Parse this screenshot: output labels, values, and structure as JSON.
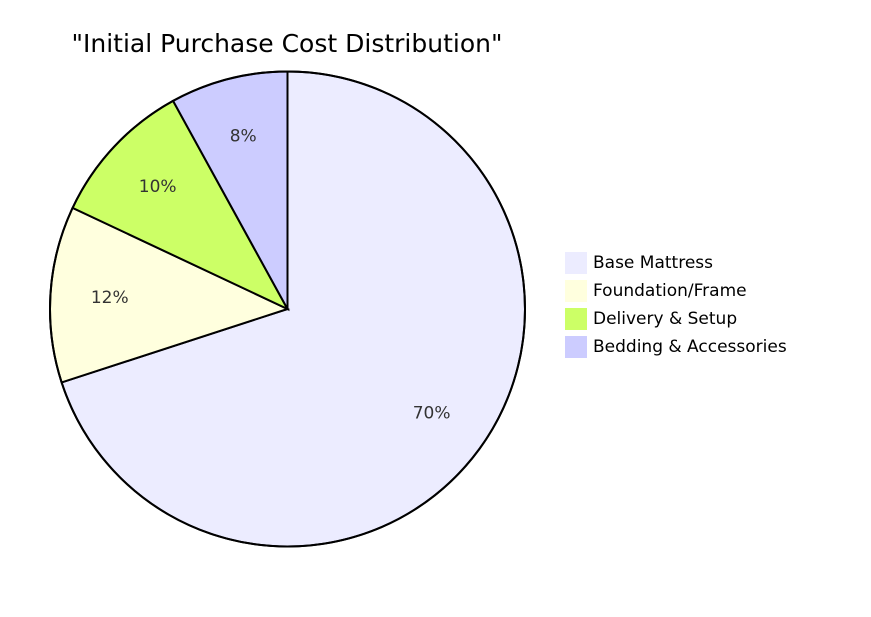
{
  "chart_data": {
    "type": "pie",
    "title": "\"Initial Purchase Cost Distribution\"",
    "slices": [
      {
        "label": "Base Mattress",
        "value": 70,
        "display": "70%",
        "color": "#ececff"
      },
      {
        "label": "Foundation/Frame",
        "value": 12,
        "display": "12%",
        "color": "#ffffde"
      },
      {
        "label": "Delivery & Setup",
        "value": 10,
        "display": "10%",
        "color": "#ccff66"
      },
      {
        "label": "Bedding & Accessories",
        "value": 8,
        "display": "8%",
        "color": "#ccccff"
      }
    ],
    "legend_position": "right",
    "start_angle": "top",
    "direction": "clockwise"
  }
}
